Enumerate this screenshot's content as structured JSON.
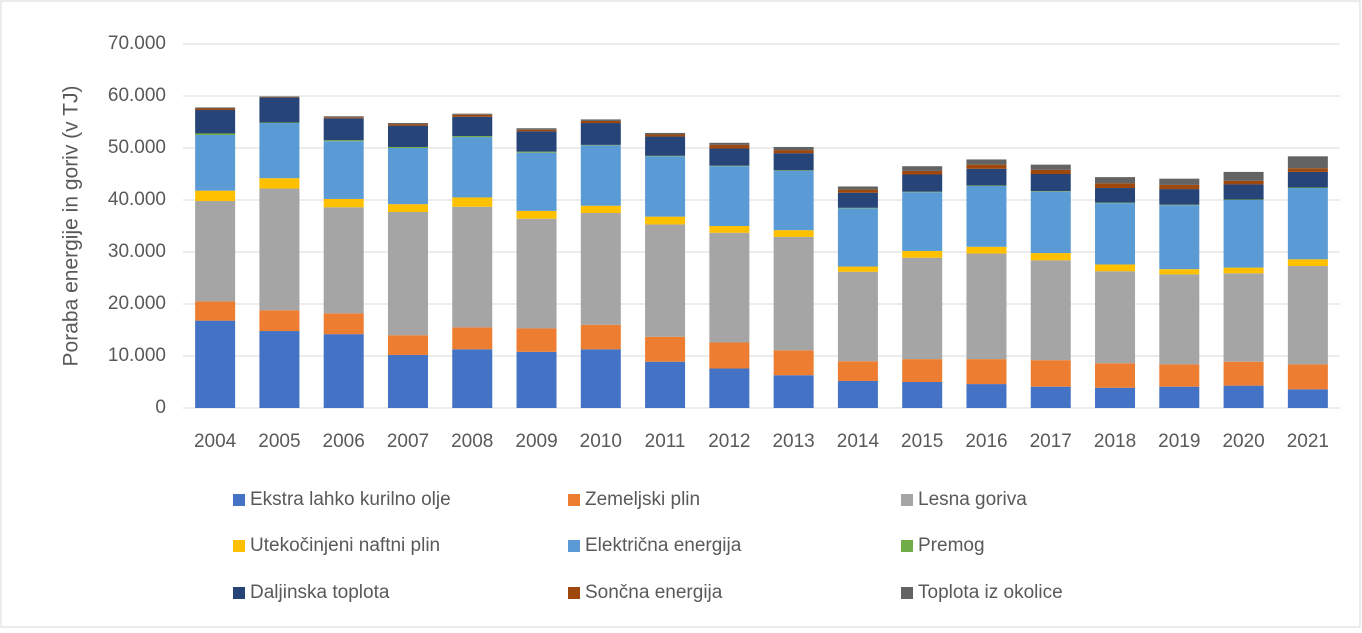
{
  "chart_data": {
    "type": "stacked-bar",
    "y_label": "Poraba energije in goriv (v TJ)",
    "categories": [
      "2004",
      "2005",
      "2006",
      "2007",
      "2008",
      "2009",
      "2010",
      "2011",
      "2012",
      "2013",
      "2014",
      "2015",
      "2016",
      "2017",
      "2018",
      "2019",
      "2020",
      "2021"
    ],
    "ylim": [
      0,
      70000
    ],
    "yticks": [
      0,
      {
        "value": 10000,
        "label": "10.000"
      },
      {
        "value": 20000,
        "label": "20.000"
      },
      {
        "value": 30000,
        "label": "30.000"
      },
      {
        "value": 40000,
        "label": "40.000"
      },
      {
        "value": 50000,
        "label": "50.000"
      },
      {
        "value": 60000,
        "label": "60.000"
      },
      {
        "value": 70000,
        "label": "70.000"
      }
    ],
    "grid": true,
    "legend": "bottom",
    "series": [
      {
        "name": "Ekstra lahko kurilno olje",
        "color": "#4472c4",
        "values": [
          16800,
          14800,
          14200,
          10200,
          11300,
          10800,
          11300,
          8900,
          7600,
          6300,
          5200,
          5000,
          4600,
          4100,
          3900,
          4100,
          4300,
          3600
        ]
      },
      {
        "name": "Zemeljski plin",
        "color": "#ed7d31",
        "values": [
          3700,
          4000,
          4000,
          3800,
          4200,
          4500,
          4700,
          4800,
          5000,
          4800,
          3800,
          4400,
          4800,
          5100,
          4700,
          4300,
          4600,
          4800
        ]
      },
      {
        "name": "Lesna goriva",
        "color": "#a5a5a5",
        "values": [
          19300,
          23400,
          20400,
          23700,
          23200,
          21100,
          21500,
          21600,
          21100,
          21800,
          17200,
          19500,
          20300,
          19200,
          17700,
          17300,
          17000,
          18900
        ]
      },
      {
        "name": "Utekočinjeni naftni plin",
        "color": "#ffc000",
        "values": [
          2000,
          2000,
          1600,
          1500,
          1800,
          1500,
          1400,
          1500,
          1300,
          1300,
          1000,
          1300,
          1300,
          1400,
          1300,
          1000,
          1100,
          1300
        ]
      },
      {
        "name": "Električna energija",
        "color": "#5b9bd5",
        "values": [
          10700,
          10600,
          11100,
          10800,
          11600,
          11200,
          11600,
          11600,
          11500,
          11400,
          11200,
          11300,
          11700,
          11800,
          11800,
          12300,
          13000,
          13700
        ]
      },
      {
        "name": "Premog",
        "color": "#70ad47",
        "values": [
          300,
          100,
          200,
          200,
          200,
          200,
          100,
          100,
          100,
          100,
          100,
          100,
          100,
          100,
          100,
          100,
          100,
          100
        ]
      },
      {
        "name": "Daljinska toplota",
        "color": "#264478",
        "values": [
          4500,
          4800,
          4200,
          4100,
          3700,
          3900,
          4200,
          3700,
          3300,
          3300,
          2900,
          3300,
          3200,
          3300,
          2800,
          3000,
          2900,
          3000
        ]
      },
      {
        "name": "Sončna energija",
        "color": "#9e480e",
        "values": [
          300,
          100,
          200,
          300,
          400,
          300,
          400,
          400,
          700,
          600,
          600,
          700,
          800,
          800,
          900,
          800,
          700,
          700
        ]
      },
      {
        "name": "Toplota iz okolice",
        "color": "#636363",
        "values": [
          200,
          100,
          200,
          200,
          200,
          300,
          300,
          300,
          400,
          600,
          600,
          900,
          1000,
          1000,
          1200,
          1200,
          1700,
          2300
        ]
      }
    ]
  }
}
